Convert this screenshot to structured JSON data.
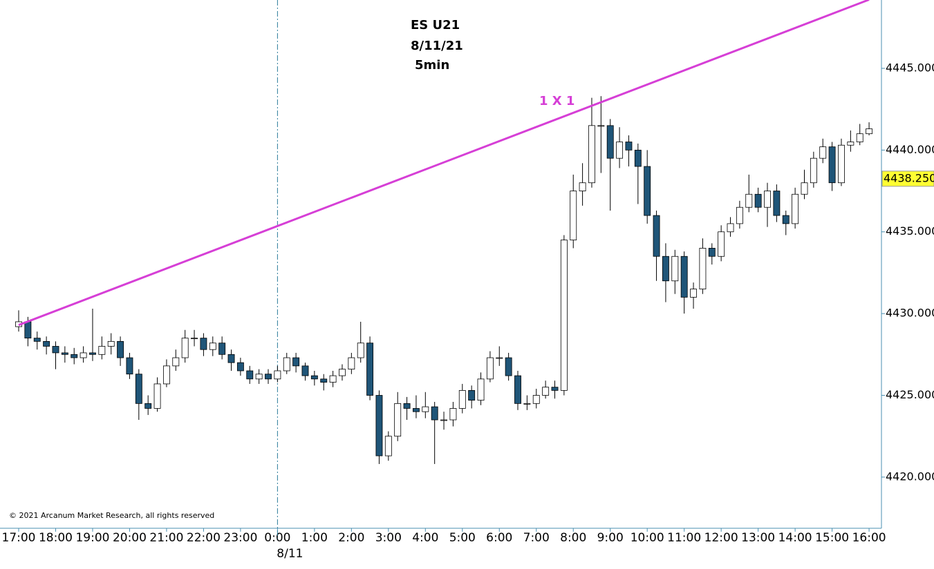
{
  "chart_data": {
    "type": "candlestick",
    "title": "ES U21",
    "subtitle": "8/11/21",
    "interval": "5min",
    "footnote": "© 2021 Arcanum Market Research, all rights reserved",
    "up_color": "#ffffff",
    "down_color": "#1f5578",
    "outline_color": "#000000",
    "x": [
      0,
      0.25,
      0.5,
      0.75,
      1,
      1.25,
      1.5,
      1.75,
      2,
      2.25,
      2.5,
      2.75,
      3,
      3.25,
      3.5,
      3.75,
      4,
      4.25,
      4.5,
      4.75,
      5,
      5.25,
      5.5,
      5.75,
      6,
      6.25,
      6.5,
      6.75,
      7,
      7.25,
      7.5,
      7.75,
      8,
      8.25,
      8.5,
      8.75,
      9,
      9.25,
      9.5,
      9.75,
      10,
      10.25,
      10.5,
      10.75,
      11,
      11.25,
      11.5,
      11.75,
      12,
      12.25,
      12.5,
      12.75,
      13,
      13.25,
      13.5,
      13.75,
      14,
      14.25,
      14.5,
      14.75,
      15,
      15.25,
      15.5,
      15.75,
      16,
      16.25,
      16.5,
      16.75,
      17,
      17.25,
      17.5,
      17.75,
      18,
      18.25,
      18.5,
      18.75,
      19,
      19.25,
      19.5,
      19.75,
      20,
      20.25,
      20.5,
      20.75,
      21,
      21.25,
      21.5,
      21.75,
      22,
      22.25,
      22.5,
      22.75,
      23
    ],
    "open": [
      4429.2,
      4429.5,
      4428.5,
      4428.3,
      4428.0,
      4427.6,
      4427.5,
      4427.3,
      4427.6,
      4427.5,
      4428.0,
      4428.3,
      4427.3,
      4426.3,
      4424.5,
      4424.2,
      4425.7,
      4426.8,
      4427.3,
      4428.5,
      4428.5,
      4427.8,
      4428.2,
      4427.5,
      4427.0,
      4426.5,
      4426.0,
      4426.3,
      4426.0,
      4426.5,
      4427.3,
      4426.8,
      4426.2,
      4426.0,
      4425.8,
      4426.2,
      4426.6,
      4427.3,
      4428.2,
      4425.0,
      4421.3,
      4422.5,
      4424.5,
      4424.2,
      4424.0,
      4424.3,
      4423.5,
      4423.5,
      4424.2,
      4425.3,
      4424.7,
      4426.0,
      4427.3,
      4427.3,
      4426.2,
      4424.5,
      4424.5,
      4425.0,
      4425.5,
      4425.3,
      4434.5,
      4437.5,
      4438.0,
      4441.5,
      4441.5,
      4439.5,
      4440.5,
      4440.0,
      4439.0,
      4436.0,
      4433.5,
      4432.0,
      4433.5,
      4431.0,
      4431.5,
      4434.0,
      4433.5,
      4435.0,
      4435.5,
      4436.5,
      4437.3,
      4436.5,
      4437.5,
      4436.0,
      4435.5,
      4437.3,
      4438.0,
      4439.5,
      4440.2,
      4438.0,
      4440.3,
      4440.5,
      4441.0
    ],
    "high": [
      4430.2,
      4429.8,
      4428.9,
      4428.6,
      4428.3,
      4428.0,
      4427.9,
      4428.0,
      4430.3,
      4428.6,
      4428.8,
      4428.6,
      4427.6,
      4426.6,
      4425.0,
      4426.1,
      4427.2,
      4427.8,
      4429.0,
      4429.0,
      4428.8,
      4428.6,
      4428.6,
      4427.8,
      4427.3,
      4426.8,
      4426.6,
      4426.6,
      4426.8,
      4427.6,
      4427.6,
      4427.0,
      4426.5,
      4426.3,
      4426.5,
      4426.9,
      4427.6,
      4429.5,
      4428.6,
      4425.3,
      4422.8,
      4425.2,
      4424.9,
      4425.0,
      4425.2,
      4424.6,
      4424.0,
      4424.6,
      4425.7,
      4425.6,
      4426.4,
      4427.7,
      4428.0,
      4427.6,
      4426.5,
      4425.0,
      4425.4,
      4425.9,
      4425.9,
      4434.8,
      4438.5,
      4439.2,
      4443.2,
      4443.3,
      4441.9,
      4441.4,
      4440.9,
      4440.4,
      4440.0,
      4436.3,
      4434.3,
      4433.9,
      4433.8,
      4431.9,
      4434.6,
      4434.3,
      4435.4,
      4435.9,
      4436.9,
      4438.5,
      4437.7,
      4438.0,
      4437.9,
      4436.3,
      4437.7,
      4438.8,
      4439.9,
      4440.7,
      4440.5,
      4440.7,
      4441.2,
      4441.6,
      4441.7
    ],
    "low": [
      4428.9,
      4428.0,
      4427.8,
      4427.5,
      4426.6,
      4427.0,
      4426.9,
      4427.0,
      4427.1,
      4427.2,
      4427.5,
      4426.8,
      4426.0,
      4423.5,
      4423.8,
      4424.0,
      4425.5,
      4426.5,
      4427.0,
      4428.0,
      4427.4,
      4427.4,
      4427.2,
      4426.5,
      4426.2,
      4425.7,
      4425.7,
      4425.7,
      4425.8,
      4426.3,
      4426.4,
      4425.9,
      4425.6,
      4425.3,
      4425.5,
      4425.9,
      4426.3,
      4427.0,
      4424.7,
      4420.8,
      4421.0,
      4422.2,
      4423.5,
      4423.6,
      4423.6,
      4420.8,
      4422.9,
      4423.1,
      4423.9,
      4424.2,
      4424.4,
      4425.8,
      4426.8,
      4425.9,
      4424.1,
      4424.1,
      4424.2,
      4424.8,
      4424.8,
      4425.0,
      4434.0,
      4436.6,
      4437.7,
      4438.6,
      4436.3,
      4438.9,
      4439.0,
      4436.7,
      4435.5,
      4432.0,
      4430.7,
      4431.2,
      4430.0,
      4430.3,
      4431.2,
      4433.0,
      4433.2,
      4434.7,
      4435.2,
      4436.2,
      4436.2,
      4435.3,
      4435.6,
      4434.8,
      4435.2,
      4437.0,
      4437.7,
      4439.2,
      4437.5,
      4437.8,
      4439.9,
      4440.3,
      4440.9
    ],
    "close": [
      4429.5,
      4428.5,
      4428.3,
      4428.0,
      4427.6,
      4427.5,
      4427.3,
      4427.6,
      4427.5,
      4428.0,
      4428.3,
      4427.3,
      4426.3,
      4424.5,
      4424.2,
      4425.7,
      4426.8,
      4427.3,
      4428.5,
      4428.5,
      4427.8,
      4428.2,
      4427.5,
      4427.0,
      4426.5,
      4426.0,
      4426.3,
      4426.0,
      4426.5,
      4427.3,
      4426.8,
      4426.2,
      4426.0,
      4425.8,
      4426.2,
      4426.6,
      4427.3,
      4428.2,
      4425.0,
      4421.3,
      4422.5,
      4424.5,
      4424.2,
      4424.0,
      4424.3,
      4423.5,
      4423.5,
      4424.2,
      4425.3,
      4424.7,
      4426.0,
      4427.3,
      4427.3,
      4426.2,
      4424.5,
      4424.5,
      4425.0,
      4425.5,
      4425.3,
      4434.5,
      4437.5,
      4438.0,
      4441.5,
      4441.5,
      4439.5,
      4440.5,
      4440.0,
      4439.0,
      4436.0,
      4433.5,
      4432.0,
      4433.5,
      4431.0,
      4431.5,
      4434.0,
      4433.5,
      4435.0,
      4435.5,
      4436.5,
      4437.3,
      4436.5,
      4437.5,
      4436.0,
      4435.5,
      4437.3,
      4438.0,
      4439.5,
      4440.2,
      4438.0,
      4440.3,
      4440.5,
      4441.0,
      4441.3
    ],
    "xlim": [
      -0.505,
      23.335
    ],
    "ylim": [
      4416.87,
      4449.18
    ],
    "xticks": [
      {
        "value": 0,
        "label": "17:00"
      },
      {
        "value": 1,
        "label": "18:00"
      },
      {
        "value": 2,
        "label": "19:00"
      },
      {
        "value": 3,
        "label": "20:00"
      },
      {
        "value": 4,
        "label": "21:00"
      },
      {
        "value": 5,
        "label": "22:00"
      },
      {
        "value": 6,
        "label": "23:00"
      },
      {
        "value": 7,
        "label": "0:00"
      },
      {
        "value": 8,
        "label": "1:00"
      },
      {
        "value": 9,
        "label": "2:00"
      },
      {
        "value": 10,
        "label": "3:00"
      },
      {
        "value": 11,
        "label": "4:00"
      },
      {
        "value": 12,
        "label": "5:00"
      },
      {
        "value": 13,
        "label": "6:00"
      },
      {
        "value": 14,
        "label": "7:00"
      },
      {
        "value": 15,
        "label": "8:00"
      },
      {
        "value": 16,
        "label": "9:00"
      },
      {
        "value": 17,
        "label": "10:00"
      },
      {
        "value": 18,
        "label": "11:00"
      },
      {
        "value": 19,
        "label": "12:00"
      },
      {
        "value": 20,
        "label": "13:00"
      },
      {
        "value": 21,
        "label": "14:00"
      },
      {
        "value": 22,
        "label": "15:00"
      },
      {
        "value": 23,
        "label": "16:00"
      }
    ],
    "yticks": [
      {
        "value": 4420,
        "label": "4420.000"
      },
      {
        "value": 4425,
        "label": "4425.000"
      },
      {
        "value": 4430,
        "label": "4430.000"
      },
      {
        "value": 4435,
        "label": "4435.000"
      },
      {
        "value": 4440,
        "label": "4440.000"
      },
      {
        "value": 4445,
        "label": "4445.000"
      }
    ],
    "session_break": {
      "value": 7,
      "label": "8/11"
    },
    "current_price": {
      "value": 4438.25,
      "label": "4438.250",
      "color": "#ffff33"
    },
    "trendline": {
      "label": "1 X 1",
      "color": "#d63fd6",
      "x": [
        0,
        23
      ],
      "y": [
        4429.3,
        4449.2
      ]
    }
  }
}
